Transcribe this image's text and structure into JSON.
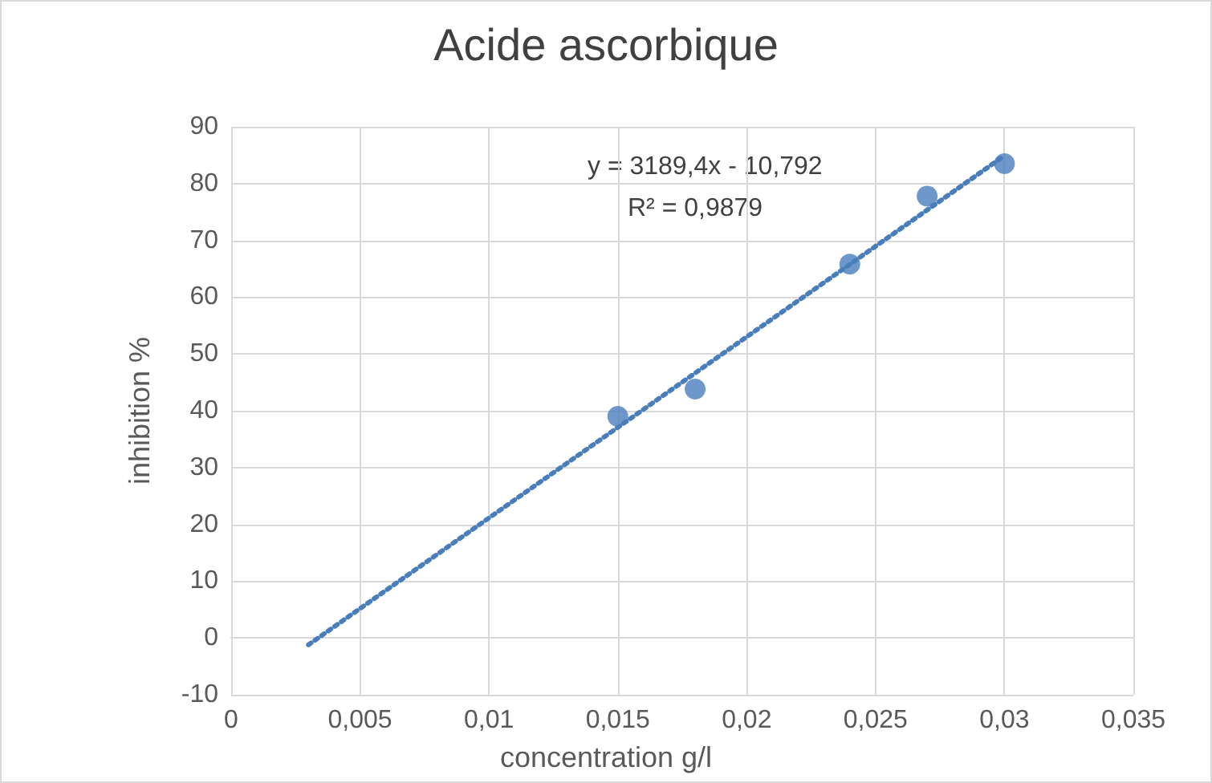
{
  "chart_data": {
    "type": "scatter",
    "title": "Acide ascorbique",
    "xlabel": "concentration g/l",
    "ylabel": "inhibition %",
    "annotations": [
      "y = 3189,4x - 10,792",
      "R² = 0,9879"
    ],
    "xlim": [
      0,
      0.035
    ],
    "xticks": [
      {
        "value": 0,
        "label": "0"
      },
      {
        "value": 0.005,
        "label": "0,005"
      },
      {
        "value": 0.01,
        "label": "0,01"
      },
      {
        "value": 0.015,
        "label": "0,015"
      },
      {
        "value": 0.02,
        "label": "0,02"
      },
      {
        "value": 0.025,
        "label": "0,025"
      },
      {
        "value": 0.03,
        "label": "0,03"
      },
      {
        "value": 0.035,
        "label": "0,035"
      }
    ],
    "ylim": [
      -10,
      90
    ],
    "yticks": [
      -10,
      0,
      10,
      20,
      30,
      40,
      50,
      60,
      70,
      80,
      90
    ],
    "grid": true,
    "marker": "circle",
    "series": [
      {
        "color": "#4a7ebb",
        "x": [
          0.015,
          0.018,
          0.024,
          0.027,
          0.03
        ],
        "values": [
          39,
          43.8,
          65.8,
          77.8,
          83.5
        ]
      },
      {
        "type": "line",
        "color": "#4a7ebb",
        "line_style": "dotted",
        "marker": "none",
        "x": [
          0.003,
          0.03
        ],
        "values": [
          -1.2,
          84.9
        ]
      }
    ]
  }
}
